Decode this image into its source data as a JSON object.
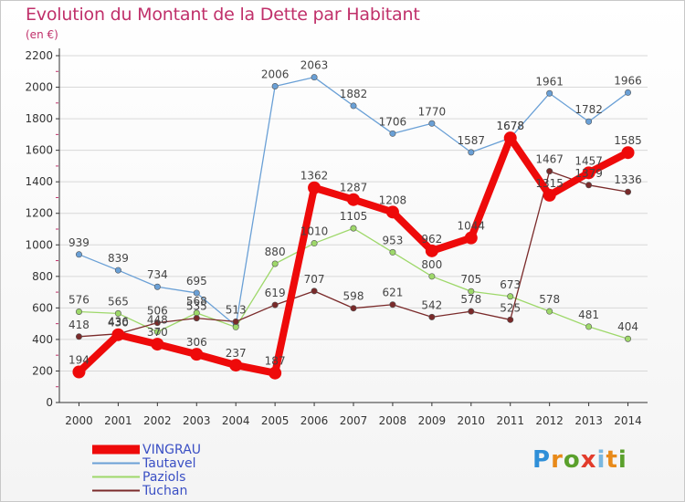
{
  "title": "Evolution du Montant de la Dette par Habitant",
  "subtitle": "(en €)",
  "logo_text": "Proxiti",
  "colors": {
    "title": "#c0306a",
    "axis": "#333333",
    "grid": "#d8d8d8",
    "tick_accent": "#c0306a",
    "logo": [
      "#2f8fd8",
      "#e88a1a",
      "#5aa02c",
      "#e23c2c",
      "#7ab8e0",
      "#e88a1a",
      "#5aa02c"
    ]
  },
  "chart_data": {
    "type": "line",
    "x": [
      "2000",
      "2001",
      "2002",
      "2003",
      "2004",
      "2005",
      "2006",
      "2007",
      "2008",
      "2009",
      "2010",
      "2011",
      "2012",
      "2013",
      "2014"
    ],
    "ylim": [
      0,
      2200
    ],
    "yticks": [
      0,
      200,
      400,
      600,
      800,
      1000,
      1200,
      1400,
      1600,
      1800,
      2000,
      2200
    ],
    "grid": "horizontal",
    "legend_position": "bottom-left",
    "series": [
      {
        "name": "Tautavel",
        "color": "#6aa0d6",
        "values": [
          939,
          839,
          734,
          695,
          487,
          2006,
          2063,
          1882,
          1706,
          1770,
          1587,
          1678,
          1961,
          1782,
          1966
        ]
      },
      {
        "name": "Paziols",
        "color": "#9ed86a",
        "values": [
          576,
          565,
          448,
          568,
          478,
          880,
          1010,
          1105,
          953,
          800,
          705,
          673,
          578,
          481,
          404
        ]
      },
      {
        "name": "Tuchan",
        "color": "#7a2a2a",
        "values": [
          418,
          436,
          506,
          535,
          513,
          619,
          707,
          598,
          621,
          542,
          578,
          525,
          1467,
          1379,
          1336
        ]
      },
      {
        "name": "VINGRAU",
        "color": "#ee0a0a",
        "values": [
          194,
          430,
          370,
          306,
          237,
          187,
          1362,
          1287,
          1208,
          962,
          1044,
          1678,
          1315,
          1457,
          1585
        ]
      }
    ],
    "data_labels": {
      "Tautavel": [
        "939",
        "839",
        "734",
        "695",
        "",
        "2006",
        "2063",
        "1882",
        "1706",
        "1770",
        "1587",
        "1678",
        "1961",
        "1782",
        "1966"
      ],
      "Paziols": [
        "576",
        "565",
        "448",
        "568",
        "",
        "880",
        "1010",
        "1105",
        "953",
        "800",
        "705",
        "673",
        "578",
        "481",
        "404"
      ],
      "Tuchan": [
        "418",
        "436",
        "506",
        "535",
        "513",
        "619",
        "707",
        "598",
        "621",
        "542",
        "578",
        "525",
        "1467",
        "1379",
        "1336"
      ],
      "VINGRAU": [
        "194",
        "430",
        "370",
        "306",
        "237",
        "187",
        "1362",
        "1287",
        "1208",
        "962",
        "1044",
        "1678",
        "1315",
        "1457",
        "1585"
      ]
    },
    "legend": [
      "VINGRAU",
      "Tautavel",
      "Paziols",
      "Tuchan"
    ]
  }
}
